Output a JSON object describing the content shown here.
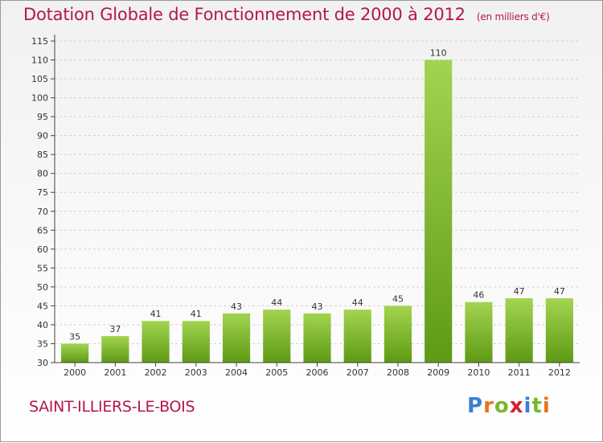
{
  "title": "Dotation Globale de Fonctionnement de 2000 à 2012",
  "subtitle": "(en milliers d'€)",
  "commune": "SAINT-ILLIERS-LE-BOIS",
  "logo": {
    "letters": [
      "P",
      "r",
      "o",
      "x",
      "i",
      "t",
      "i"
    ],
    "colors": [
      "#3a7fd4",
      "#e8741c",
      "#7ab82b",
      "#d6202f",
      "#3a7fd4",
      "#7ab82b",
      "#e8741c"
    ]
  },
  "colors": {
    "bar_light": "#a3d450",
    "bar_dark": "#5e9a14",
    "title": "#b5174a",
    "axis": "#444444",
    "grid": "#d0d0d0"
  },
  "chart_data": {
    "type": "bar",
    "categories": [
      "2000",
      "2001",
      "2002",
      "2003",
      "2004",
      "2005",
      "2006",
      "2007",
      "2008",
      "2009",
      "2010",
      "2011",
      "2012"
    ],
    "values": [
      35,
      37,
      41,
      41,
      43,
      44,
      43,
      44,
      45,
      110,
      46,
      47,
      47
    ],
    "ylim": [
      30,
      115
    ],
    "yticks": [
      30,
      35,
      40,
      45,
      50,
      55,
      60,
      65,
      70,
      75,
      80,
      85,
      90,
      95,
      100,
      105,
      110,
      115
    ],
    "grid": true
  }
}
